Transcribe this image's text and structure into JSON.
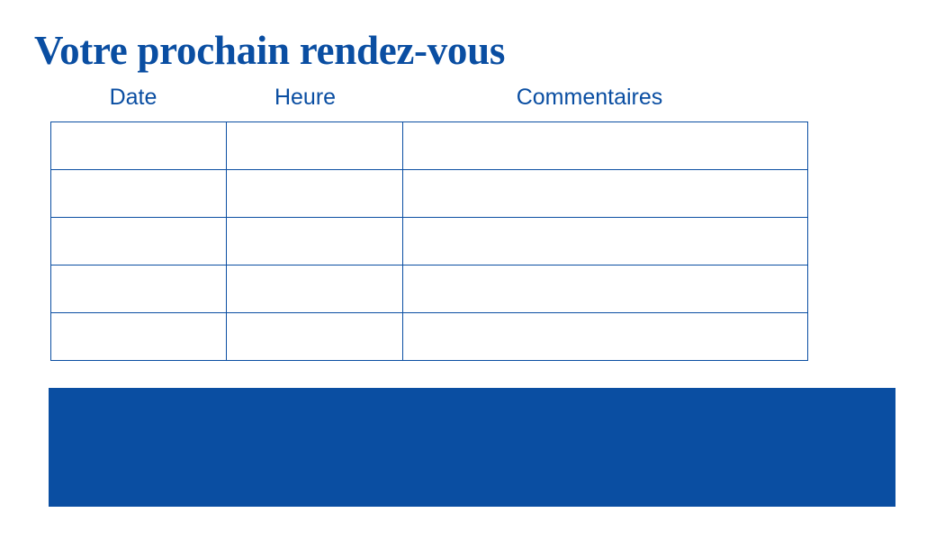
{
  "title": "Votre prochain rendez-vous",
  "table": {
    "headers": [
      "Date",
      "Heure",
      "Commentaires"
    ],
    "rows": [
      [
        "",
        "",
        ""
      ],
      [
        "",
        "",
        ""
      ],
      [
        "",
        "",
        ""
      ],
      [
        "",
        "",
        ""
      ],
      [
        "",
        "",
        ""
      ]
    ]
  },
  "colors": {
    "accent": "#0a4ea2",
    "background": "#ffffff"
  }
}
